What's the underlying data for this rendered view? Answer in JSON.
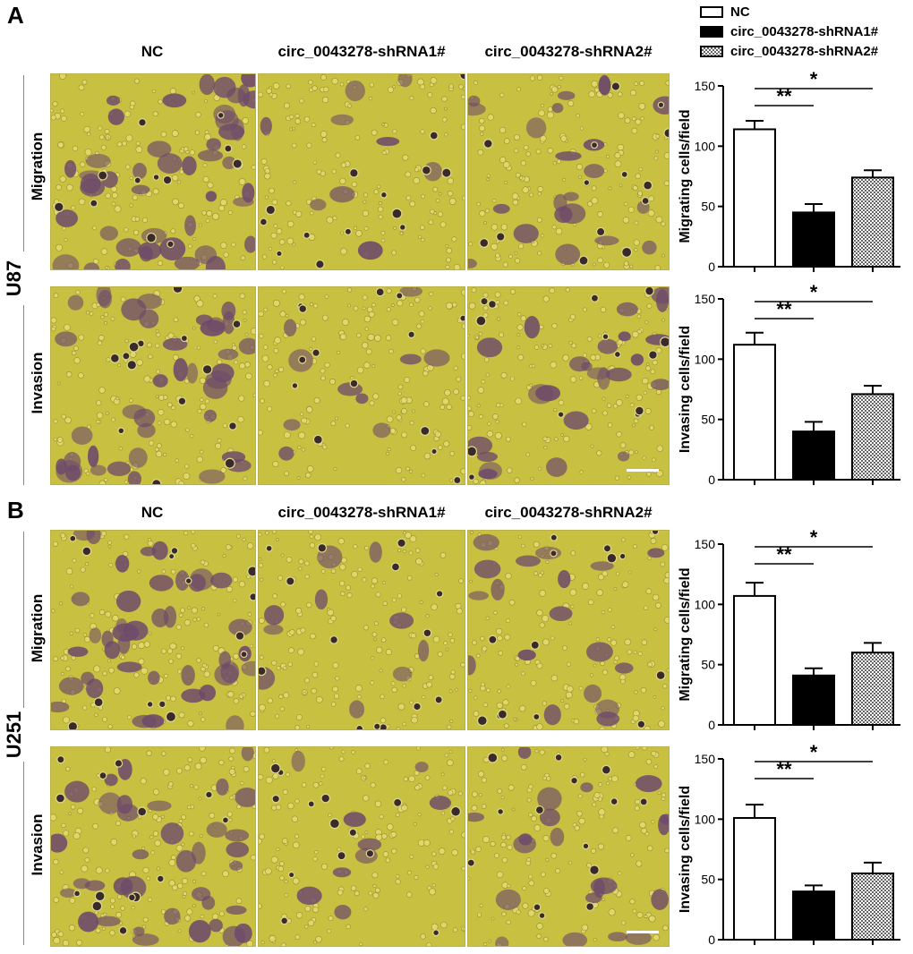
{
  "panels": [
    {
      "letter": "A",
      "cell_line": "U87",
      "columns": [
        "NC",
        "circ_0043278-shRNA1#",
        "circ_0043278-shRNA2#"
      ],
      "rows": [
        "Migration",
        "Invasion"
      ]
    },
    {
      "letter": "B",
      "cell_line": "U251",
      "columns": [
        "NC",
        "circ_0043278-shRNA1#",
        "circ_0043278-shRNA2#"
      ],
      "rows": [
        "Migration",
        "Invasion"
      ]
    }
  ],
  "legend": [
    {
      "label": "NC",
      "pattern": "white"
    },
    {
      "label": "circ_0043278-shRNA1#",
      "pattern": "black"
    },
    {
      "label": "circ_0043278-shRNA2#",
      "pattern": "checker"
    }
  ],
  "colors": {
    "micro_bg": "#c8c040",
    "cell": "#6e4a6a",
    "bar_outline": "#000000"
  },
  "chart_data": [
    {
      "type": "bar",
      "panel": "A",
      "cell_line": "U87",
      "ylabel": "Migrating cells/field",
      "ylim": [
        0,
        150
      ],
      "yticks": [
        0,
        50,
        100,
        150
      ],
      "series": [
        {
          "name": "NC",
          "value": 114,
          "error": 7
        },
        {
          "name": "circ_0043278-shRNA1#",
          "value": 45,
          "error": 7
        },
        {
          "name": "circ_0043278-shRNA2#",
          "value": 74,
          "error": 6
        }
      ],
      "significance": [
        {
          "from": 0,
          "to": 1,
          "label": "**"
        },
        {
          "from": 0,
          "to": 2,
          "label": "*"
        }
      ]
    },
    {
      "type": "bar",
      "panel": "A",
      "cell_line": "U87",
      "ylabel": "Invasing cells/field",
      "ylim": [
        0,
        150
      ],
      "yticks": [
        0,
        50,
        100,
        150
      ],
      "series": [
        {
          "name": "NC",
          "value": 112,
          "error": 10
        },
        {
          "name": "circ_0043278-shRNA1#",
          "value": 40,
          "error": 8
        },
        {
          "name": "circ_0043278-shRNA2#",
          "value": 71,
          "error": 7
        }
      ],
      "significance": [
        {
          "from": 0,
          "to": 1,
          "label": "**"
        },
        {
          "from": 0,
          "to": 2,
          "label": "*"
        }
      ]
    },
    {
      "type": "bar",
      "panel": "B",
      "cell_line": "U251",
      "ylabel": "Migrating cells/field",
      "ylim": [
        0,
        150
      ],
      "yticks": [
        0,
        50,
        100,
        150
      ],
      "series": [
        {
          "name": "NC",
          "value": 107,
          "error": 11
        },
        {
          "name": "circ_0043278-shRNA1#",
          "value": 41,
          "error": 6
        },
        {
          "name": "circ_0043278-shRNA2#",
          "value": 60,
          "error": 8
        }
      ],
      "significance": [
        {
          "from": 0,
          "to": 1,
          "label": "**"
        },
        {
          "from": 0,
          "to": 2,
          "label": "*"
        }
      ]
    },
    {
      "type": "bar",
      "panel": "B",
      "cell_line": "U251",
      "ylabel": "Invasing cells/field",
      "ylim": [
        0,
        150
      ],
      "yticks": [
        0,
        50,
        100,
        150
      ],
      "series": [
        {
          "name": "NC",
          "value": 101,
          "error": 11
        },
        {
          "name": "circ_0043278-shRNA1#",
          "value": 40,
          "error": 5
        },
        {
          "name": "circ_0043278-shRNA2#",
          "value": 55,
          "error": 9
        }
      ],
      "significance": [
        {
          "from": 0,
          "to": 1,
          "label": "**"
        },
        {
          "from": 0,
          "to": 2,
          "label": "*"
        }
      ]
    }
  ]
}
